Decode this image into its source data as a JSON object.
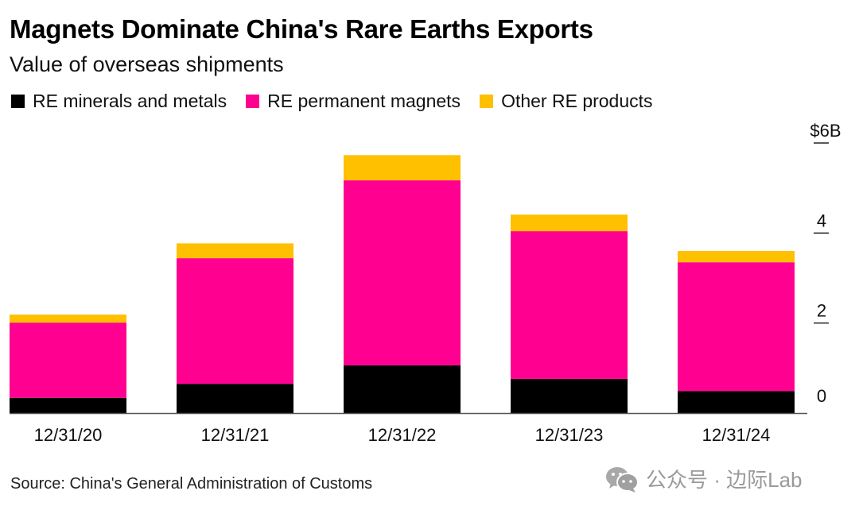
{
  "chart_data": {
    "type": "bar",
    "stacked": true,
    "title": "Magnets Dominate China's Rare Earths Exports",
    "subtitle": "Value of overseas shipments",
    "xlabel": "",
    "ylabel": "",
    "categories": [
      "12/31/20",
      "12/31/21",
      "12/31/22",
      "12/31/23",
      "12/31/24"
    ],
    "series": [
      {
        "name": "RE minerals and metals",
        "color": "#000000",
        "values": [
          0.34,
          0.65,
          1.06,
          0.76,
          0.49
        ]
      },
      {
        "name": "RE permanent magnets",
        "color": "#FF0090",
        "values": [
          1.67,
          2.79,
          4.11,
          3.28,
          2.86
        ]
      },
      {
        "name": "Other RE products",
        "color": "#FFC000",
        "values": [
          0.18,
          0.33,
          0.56,
          0.37,
          0.25
        ]
      }
    ],
    "ylim": [
      0,
      6
    ],
    "yticks": [
      0,
      2,
      4,
      6
    ],
    "ytick_labels": [
      "0",
      "2",
      "4",
      "$6B"
    ],
    "y_axis_position": "right",
    "grid": false,
    "legend_position": "top-left"
  },
  "source": "Source: China's General Administration of Customs",
  "watermark": {
    "icon": "wechat-icon",
    "text": "公众号 · 边际Lab"
  }
}
